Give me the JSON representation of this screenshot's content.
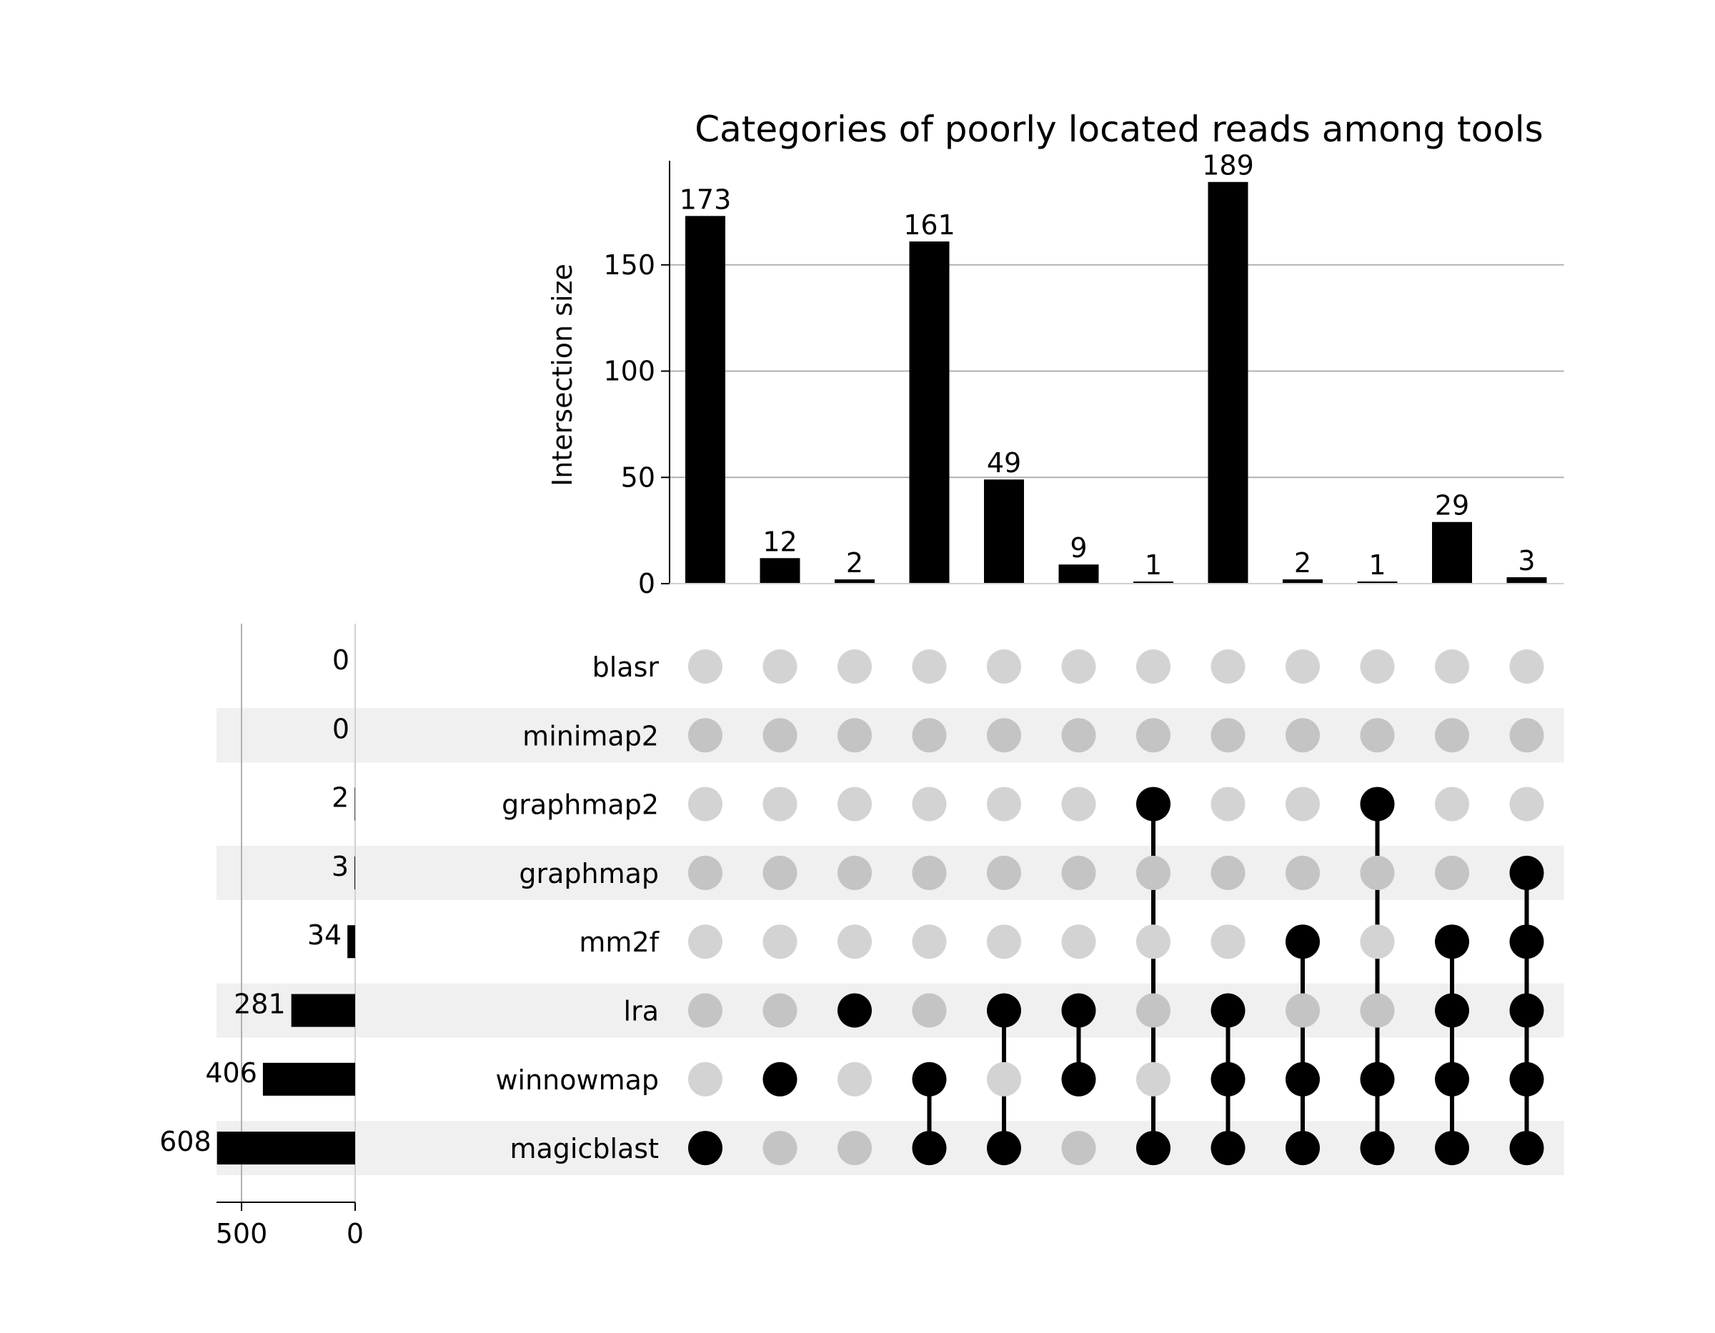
{
  "chart_data": {
    "type": "bar",
    "title": "Categories of poorly located reads among tools",
    "ylabel": "Intersection size",
    "ylim": [
      0,
      199
    ],
    "yticks": [
      0,
      50,
      100,
      150
    ],
    "grid": true,
    "sets": [
      "blasr",
      "minimap2",
      "graphmap2",
      "graphmap",
      "mm2f",
      "lra",
      "winnowmap",
      "magicblast"
    ],
    "set_sizes": [
      0,
      0,
      2,
      3,
      34,
      281,
      406,
      608
    ],
    "set_size_axis": {
      "ticks": [
        500,
        0
      ],
      "xlim": [
        640,
        0
      ]
    },
    "intersections": [
      {
        "members": [
          "magicblast"
        ],
        "value": 173
      },
      {
        "members": [
          "winnowmap"
        ],
        "value": 12
      },
      {
        "members": [
          "lra"
        ],
        "value": 2
      },
      {
        "members": [
          "winnowmap",
          "magicblast"
        ],
        "value": 161
      },
      {
        "members": [
          "lra",
          "magicblast"
        ],
        "value": 49
      },
      {
        "members": [
          "lra",
          "winnowmap"
        ],
        "value": 9
      },
      {
        "members": [
          "graphmap2",
          "magicblast"
        ],
        "value": 1
      },
      {
        "members": [
          "lra",
          "winnowmap",
          "magicblast"
        ],
        "value": 189
      },
      {
        "members": [
          "mm2f",
          "winnowmap",
          "magicblast"
        ],
        "value": 2
      },
      {
        "members": [
          "graphmap2",
          "winnowmap",
          "magicblast"
        ],
        "value": 1
      },
      {
        "members": [
          "mm2f",
          "lra",
          "winnowmap",
          "magicblast"
        ],
        "value": 29
      },
      {
        "members": [
          "graphmap",
          "mm2f",
          "lra",
          "winnowmap",
          "magicblast"
        ],
        "value": 3
      }
    ]
  }
}
